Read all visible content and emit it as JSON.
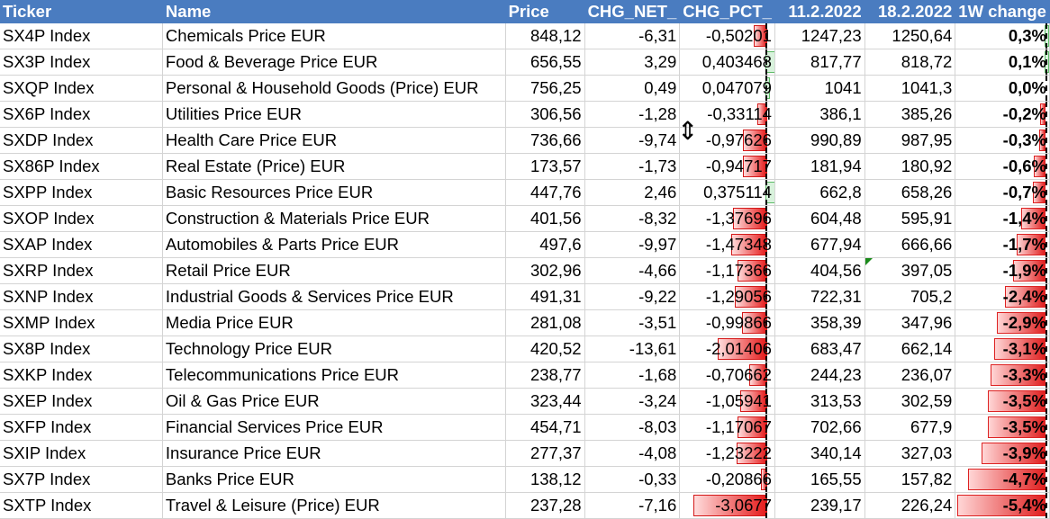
{
  "headers": [
    "Ticker",
    "Name",
    "Price",
    "CHG_NET_",
    "CHG_PCT_",
    "11.2.2022",
    "18.2.2022",
    "1W change"
  ],
  "rows": [
    {
      "ticker": "SX4P Index",
      "name": "Chemicals Price EUR",
      "price": "848,12",
      "chg_net": "-6,31",
      "chg_pct": "-0,50201",
      "d1": "1247,23",
      "d2": "1250,64",
      "change": "0,3%",
      "chg_pct_val": -0.50201,
      "change_val": 0.3
    },
    {
      "ticker": "SX3P Index",
      "name": "Food & Beverage Price EUR",
      "price": "656,55",
      "chg_net": "3,29",
      "chg_pct": "0,403468",
      "d1": "817,77",
      "d2": "818,72",
      "change": "0,1%",
      "chg_pct_val": 0.403468,
      "change_val": 0.1
    },
    {
      "ticker": "SXQP Index",
      "name": "Personal & Household Goods (Price) EUR",
      "price": "756,25",
      "chg_net": "0,49",
      "chg_pct": "0,047079",
      "d1": "1041",
      "d2": "1041,3",
      "change": "0,0%",
      "chg_pct_val": 0.047079,
      "change_val": 0.0
    },
    {
      "ticker": "SX6P Index",
      "name": "Utilities Price EUR",
      "price": "306,56",
      "chg_net": "-1,28",
      "chg_pct": "-0,33114",
      "d1": "386,1",
      "d2": "385,26",
      "change": "-0,2%",
      "chg_pct_val": -0.33114,
      "change_val": -0.2
    },
    {
      "ticker": "SXDP Index",
      "name": "Health Care Price EUR",
      "price": "736,66",
      "chg_net": "-9,74",
      "chg_pct": "-0,97626",
      "d1": "990,89",
      "d2": "987,95",
      "change": "-0,3%",
      "chg_pct_val": -0.97626,
      "change_val": -0.3
    },
    {
      "ticker": "SX86P Index",
      "name": "Real Estate (Price) EUR",
      "price": "173,57",
      "chg_net": "-1,73",
      "chg_pct": "-0,94717",
      "d1": "181,94",
      "d2": "180,92",
      "change": "-0,6%",
      "chg_pct_val": -0.94717,
      "change_val": -0.6
    },
    {
      "ticker": "SXPP Index",
      "name": "Basic Resources Price EUR",
      "price": "447,76",
      "chg_net": "2,46",
      "chg_pct": "0,375114",
      "d1": "662,8",
      "d2": "658,26",
      "change": "-0,7%",
      "chg_pct_val": 0.375114,
      "change_val": -0.7
    },
    {
      "ticker": "SXOP Index",
      "name": "Construction & Materials Price EUR",
      "price": "401,56",
      "chg_net": "-8,32",
      "chg_pct": "-1,37696",
      "d1": "604,48",
      "d2": "595,91",
      "change": "-1,4%",
      "chg_pct_val": -1.37696,
      "change_val": -1.4
    },
    {
      "ticker": "SXAP Index",
      "name": "Automobiles & Parts Price EUR",
      "price": "497,6",
      "chg_net": "-9,97",
      "chg_pct": "-1,47348",
      "d1": "677,94",
      "d2": "666,66",
      "change": "-1,7%",
      "chg_pct_val": -1.47348,
      "change_val": -1.7
    },
    {
      "ticker": "SXRP Index",
      "name": "Retail Price EUR",
      "price": "302,96",
      "chg_net": "-4,66",
      "chg_pct": "-1,17366",
      "d1": "404,56",
      "d2": "397,05",
      "change": "-1,9%",
      "chg_pct_val": -1.17366,
      "change_val": -1.9
    },
    {
      "ticker": "SXNP Index",
      "name": "Industrial Goods & Services Price EUR",
      "price": "491,31",
      "chg_net": "-9,22",
      "chg_pct": "-1,29056",
      "d1": "722,31",
      "d2": "705,2",
      "change": "-2,4%",
      "chg_pct_val": -1.29056,
      "change_val": -2.4
    },
    {
      "ticker": "SXMP Index",
      "name": "Media Price EUR",
      "price": "281,08",
      "chg_net": "-3,51",
      "chg_pct": "-0,99866",
      "d1": "358,39",
      "d2": "347,96",
      "change": "-2,9%",
      "chg_pct_val": -0.99866,
      "change_val": -2.9
    },
    {
      "ticker": "SX8P Index",
      "name": "Technology Price EUR",
      "price": "420,52",
      "chg_net": "-13,61",
      "chg_pct": "-2,01406",
      "d1": "683,47",
      "d2": "662,14",
      "change": "-3,1%",
      "chg_pct_val": -2.01406,
      "change_val": -3.1
    },
    {
      "ticker": "SXKP Index",
      "name": "Telecommunications Price EUR",
      "price": "238,77",
      "chg_net": "-1,68",
      "chg_pct": "-0,70662",
      "d1": "244,23",
      "d2": "236,07",
      "change": "-3,3%",
      "chg_pct_val": -0.70662,
      "change_val": -3.3
    },
    {
      "ticker": "SXEP Index",
      "name": "Oil & Gas Price EUR",
      "price": "323,44",
      "chg_net": "-3,24",
      "chg_pct": "-1,05941",
      "d1": "313,53",
      "d2": "302,59",
      "change": "-3,5%",
      "chg_pct_val": -1.05941,
      "change_val": -3.5
    },
    {
      "ticker": "SXFP Index",
      "name": "Financial Services Price EUR",
      "price": "454,71",
      "chg_net": "-8,03",
      "chg_pct": "-1,17067",
      "d1": "702,66",
      "d2": "677,9",
      "change": "-3,5%",
      "chg_pct_val": -1.17067,
      "change_val": -3.5
    },
    {
      "ticker": "SXIP Index",
      "name": "Insurance Price EUR",
      "price": "277,37",
      "chg_net": "-4,08",
      "chg_pct": "-1,23222",
      "d1": "340,14",
      "d2": "327,03",
      "change": "-3,9%",
      "chg_pct_val": -1.23222,
      "change_val": -3.9
    },
    {
      "ticker": "SX7P Index",
      "name": "Banks Price EUR",
      "price": "138,12",
      "chg_net": "-0,33",
      "chg_pct": "-0,20866",
      "d1": "165,55",
      "d2": "157,82",
      "change": "-4,7%",
      "chg_pct_val": -0.20866,
      "change_val": -4.7
    },
    {
      "ticker": "SXTP Index",
      "name": "Travel & Leisure (Price) EUR",
      "price": "237,28",
      "chg_net": "-7,16",
      "chg_pct": "-3,0677",
      "d1": "239,17",
      "d2": "226,24",
      "change": "-5,4%",
      "chg_pct_val": -3.0677,
      "change_val": -5.4
    }
  ],
  "colors": {
    "header_bg": "#4a7cc0",
    "neg_bar": "#e02020",
    "pos_bar": "#4cc860"
  },
  "cursor_icon": "vertical-resize-cursor-icon"
}
